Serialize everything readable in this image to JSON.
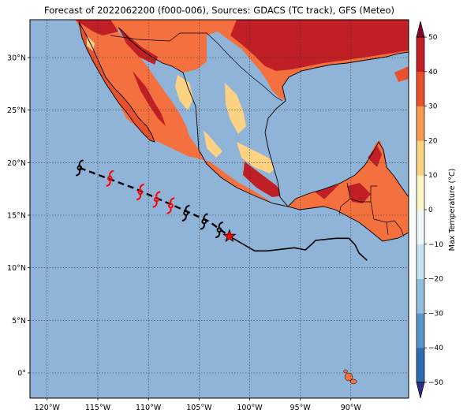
{
  "title": "Forecast of 2022062200 (f000-006), Sources: GDACS (TC track), GFS (Meteo)",
  "map": {
    "lon_range": [
      -121.7,
      -84.3
    ],
    "lat_range": [
      -2.4,
      33.6
    ],
    "lon_ticks": [
      {
        "value": -120,
        "label": "120°W"
      },
      {
        "value": -115,
        "label": "115°W"
      },
      {
        "value": -110,
        "label": "110°W"
      },
      {
        "value": -105,
        "label": "105°W"
      },
      {
        "value": -100,
        "label": "100°W"
      },
      {
        "value": -95,
        "label": "95°W"
      },
      {
        "value": -90,
        "label": "90°W"
      }
    ],
    "lat_ticks": [
      {
        "value": 0,
        "label": "0°"
      },
      {
        "value": 5,
        "label": "5°N"
      },
      {
        "value": 10,
        "label": "10°N"
      },
      {
        "value": 15,
        "label": "15°N"
      },
      {
        "value": 20,
        "label": "20°N"
      },
      {
        "value": 25,
        "label": "25°N"
      },
      {
        "value": 30,
        "label": "30°N"
      }
    ],
    "grid": true,
    "ocean_color": "#90b4d8"
  },
  "colorbar": {
    "label": "Max Temperature (°C)",
    "min": -50,
    "max": 50,
    "ticks": [
      "50",
      "40",
      "30",
      "20",
      "10",
      "0",
      "−10",
      "−20",
      "−30",
      "−40",
      "−50"
    ],
    "colors": [
      "#2b2d8f",
      "#2f6bad",
      "#5b95c5",
      "#91bfdb",
      "#c7e3ef",
      "#eef8f8",
      "#fdf7c6",
      "#fdd283",
      "#f99a52",
      "#e8512c",
      "#c01f26",
      "#8a0226"
    ]
  },
  "track": {
    "past_points": [
      [
        -116.8,
        19.5
      ],
      [
        -111.5,
        17.6
      ],
      [
        -107.0,
        15.7
      ],
      [
        -104.0,
        14.4
      ],
      [
        -102.0,
        13.0
      ]
    ],
    "forecast_points": [
      [
        -102.0,
        13.0
      ],
      [
        -99.5,
        11.6
      ],
      [
        -98.3,
        11.6
      ],
      [
        -95.6,
        11.9
      ],
      [
        -94.5,
        11.7
      ],
      [
        -93.8,
        12.3
      ],
      [
        -93.5,
        12.6
      ],
      [
        -91.5,
        12.8
      ],
      [
        -90.2,
        12.8
      ],
      [
        -89.6,
        12.2
      ],
      [
        -89.2,
        11.4
      ],
      [
        -88.4,
        10.7
      ]
    ],
    "symbols": [
      {
        "lon": -116.8,
        "lat": 19.5,
        "color": "#000000",
        "name": "cyclone-icon"
      },
      {
        "lon": -113.8,
        "lat": 18.5,
        "color": "#ff0000",
        "name": "cyclone-icon"
      },
      {
        "lon": -110.8,
        "lat": 17.2,
        "color": "#ff0000",
        "name": "cyclone-icon"
      },
      {
        "lon": -109.2,
        "lat": 16.5,
        "color": "#ff0000",
        "name": "cyclone-icon"
      },
      {
        "lon": -107.8,
        "lat": 15.9,
        "color": "#ff0000",
        "name": "cyclone-icon"
      },
      {
        "lon": -106.3,
        "lat": 15.2,
        "color": "#000000",
        "name": "cyclone-icon"
      },
      {
        "lon": -104.5,
        "lat": 14.4,
        "color": "#000000",
        "name": "cyclone-icon"
      },
      {
        "lon": -103.0,
        "lat": 13.6,
        "color": "#000000",
        "name": "cyclone-icon"
      }
    ],
    "current_position": {
      "lon": -102.0,
      "lat": 13.0,
      "color": "#ff0000"
    }
  }
}
